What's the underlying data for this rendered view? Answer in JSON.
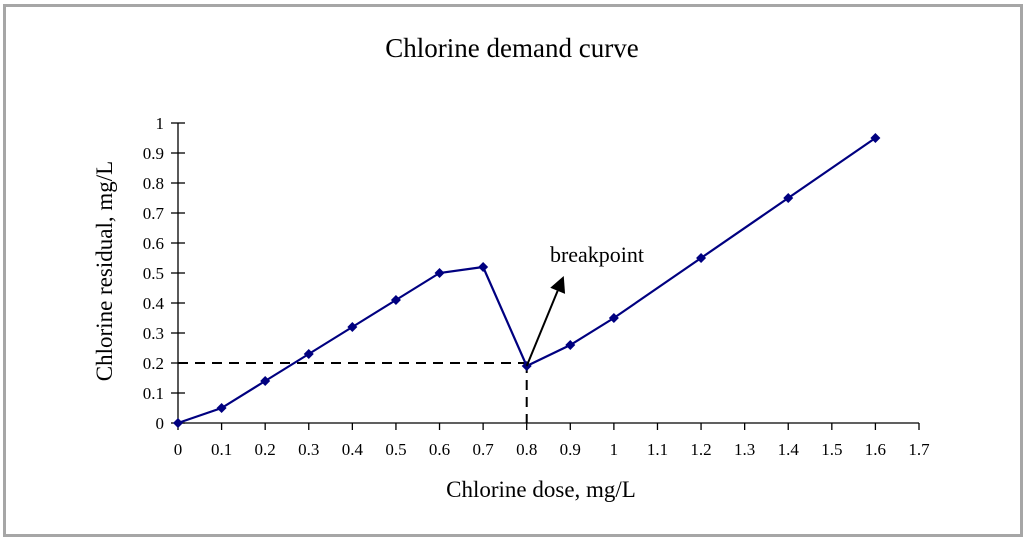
{
  "chart_data": {
    "type": "line",
    "title": "Chlorine demand curve",
    "xlabel": "Chlorine dose, mg/L",
    "ylabel": "Chlorine residual, mg/L",
    "xlim": [
      0,
      1.7
    ],
    "ylim": [
      0,
      1
    ],
    "x_ticks": [
      "0",
      "0.1",
      "0.2",
      "0.3",
      "0.4",
      "0.5",
      "0.6",
      "0.7",
      "0.8",
      "0.9",
      "1",
      "1.1",
      "1.2",
      "1.3",
      "1.4",
      "1.5",
      "1.6",
      "1.7"
    ],
    "y_ticks": [
      "0",
      "0.1",
      "0.2",
      "0.3",
      "0.4",
      "0.5",
      "0.6",
      "0.7",
      "0.8",
      "0.9",
      "1"
    ],
    "grid": false,
    "legend": null,
    "series": [
      {
        "name": "Chlorine residual",
        "color": "#000080",
        "marker": "diamond",
        "x": [
          0,
          0.1,
          0.2,
          0.3,
          0.4,
          0.5,
          0.6,
          0.7,
          0.8,
          0.9,
          1.0,
          1.2,
          1.4,
          1.6
        ],
        "y": [
          0,
          0.05,
          0.14,
          0.23,
          0.32,
          0.41,
          0.5,
          0.52,
          0.19,
          0.26,
          0.35,
          0.55,
          0.75,
          0.95
        ]
      }
    ],
    "annotations": [
      {
        "text": "breakpoint",
        "arrow_from": [
          0.8,
          0.19
        ],
        "arrow_to": [
          0.885,
          0.49
        ]
      },
      {
        "type": "dashed-reference",
        "x": 0.8,
        "y": 0.2
      }
    ]
  }
}
